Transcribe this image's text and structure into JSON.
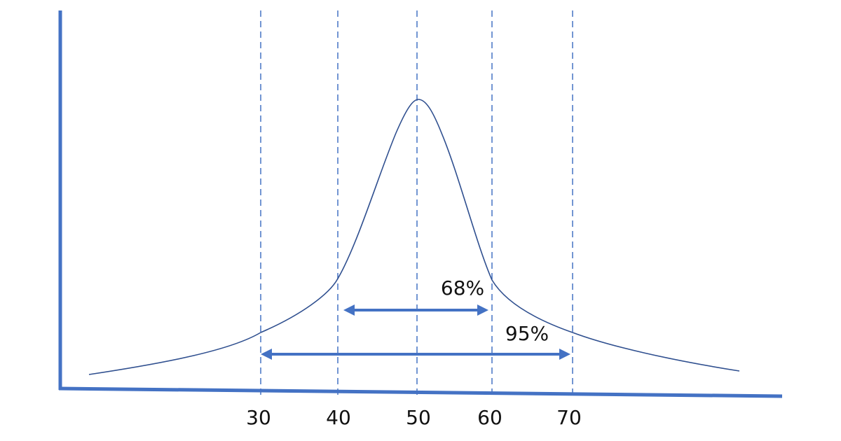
{
  "axis": {
    "labels": [
      "30",
      "40",
      "50",
      "60",
      "70"
    ]
  },
  "intervals": [
    {
      "label": "68%"
    },
    {
      "label": "95%"
    }
  ]
}
